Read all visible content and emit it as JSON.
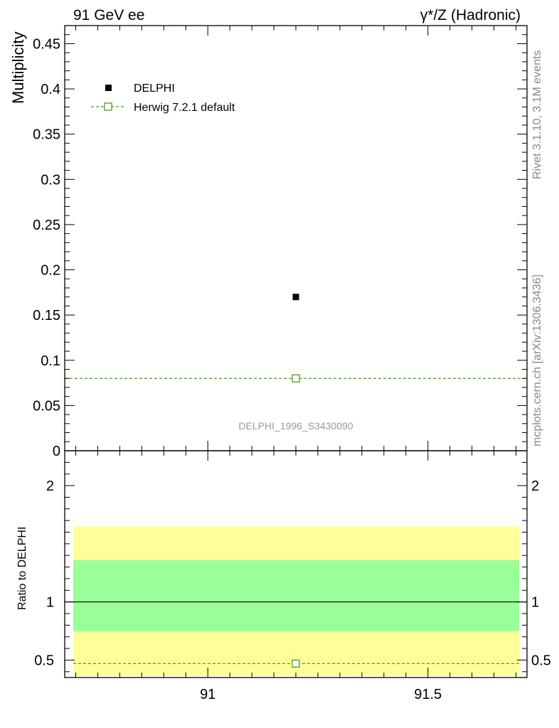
{
  "header": {
    "left": "91 GeV ee",
    "right": "γ*/Z (Hadronic)"
  },
  "side": {
    "rivet": "Rivet 3.1.10,  3.1M events",
    "mcplots": "mcplots.cern.ch [arXiv:1306.3436]"
  },
  "chart_data": {
    "type": "scatter",
    "analysis_label": "DELPHI_1996_S3430090",
    "xlim": [
      90.675,
      91.725
    ],
    "x_ticks": [
      91,
      91.5
    ],
    "x_tick_labels": [
      "91",
      "91.5"
    ],
    "main": {
      "ylabel": "Multiplicity",
      "ylim": [
        0,
        0.47
      ],
      "y_ticks": [
        0,
        0.05,
        0.1,
        0.15,
        0.2,
        0.25,
        0.3,
        0.35,
        0.4,
        0.45
      ],
      "y_tick_labels": [
        "0",
        "0.05",
        "0.1",
        "0.15",
        "0.2",
        "0.25",
        "0.3",
        "0.35",
        "0.4",
        "0.45"
      ],
      "series": [
        {
          "name": "DELPHI",
          "color": "#000000",
          "marker": "filled-square",
          "x": [
            91.2
          ],
          "y": [
            0.17
          ]
        },
        {
          "name": "Herwig 7.2.1 default",
          "color": "#4d9a1e",
          "marker": "open-square",
          "line": "dashed",
          "x": [
            91.2
          ],
          "y": [
            0.08
          ],
          "x_range": [
            90.675,
            91.725
          ]
        }
      ],
      "legend_position": "top-left"
    },
    "ratio": {
      "ylabel": "Ratio to DELPHI",
      "ylim": [
        0.35,
        2.3
      ],
      "y_ticks": [
        0.5,
        1,
        2
      ],
      "y_tick_labels": [
        "0.5",
        "1",
        "2"
      ],
      "reference": 1,
      "bands": [
        {
          "color": "#ffff99",
          "low": 0.37,
          "high": 1.65,
          "x_range": [
            90.675,
            91.725
          ]
        },
        {
          "color": "#99ff99",
          "low": 0.75,
          "high": 1.36,
          "x_range": [
            90.675,
            91.725
          ]
        }
      ],
      "series": [
        {
          "name": "Herwig 7.2.1 default",
          "color": "#4d9a1e",
          "x": [
            91.2
          ],
          "y": [
            0.47
          ]
        }
      ]
    }
  }
}
